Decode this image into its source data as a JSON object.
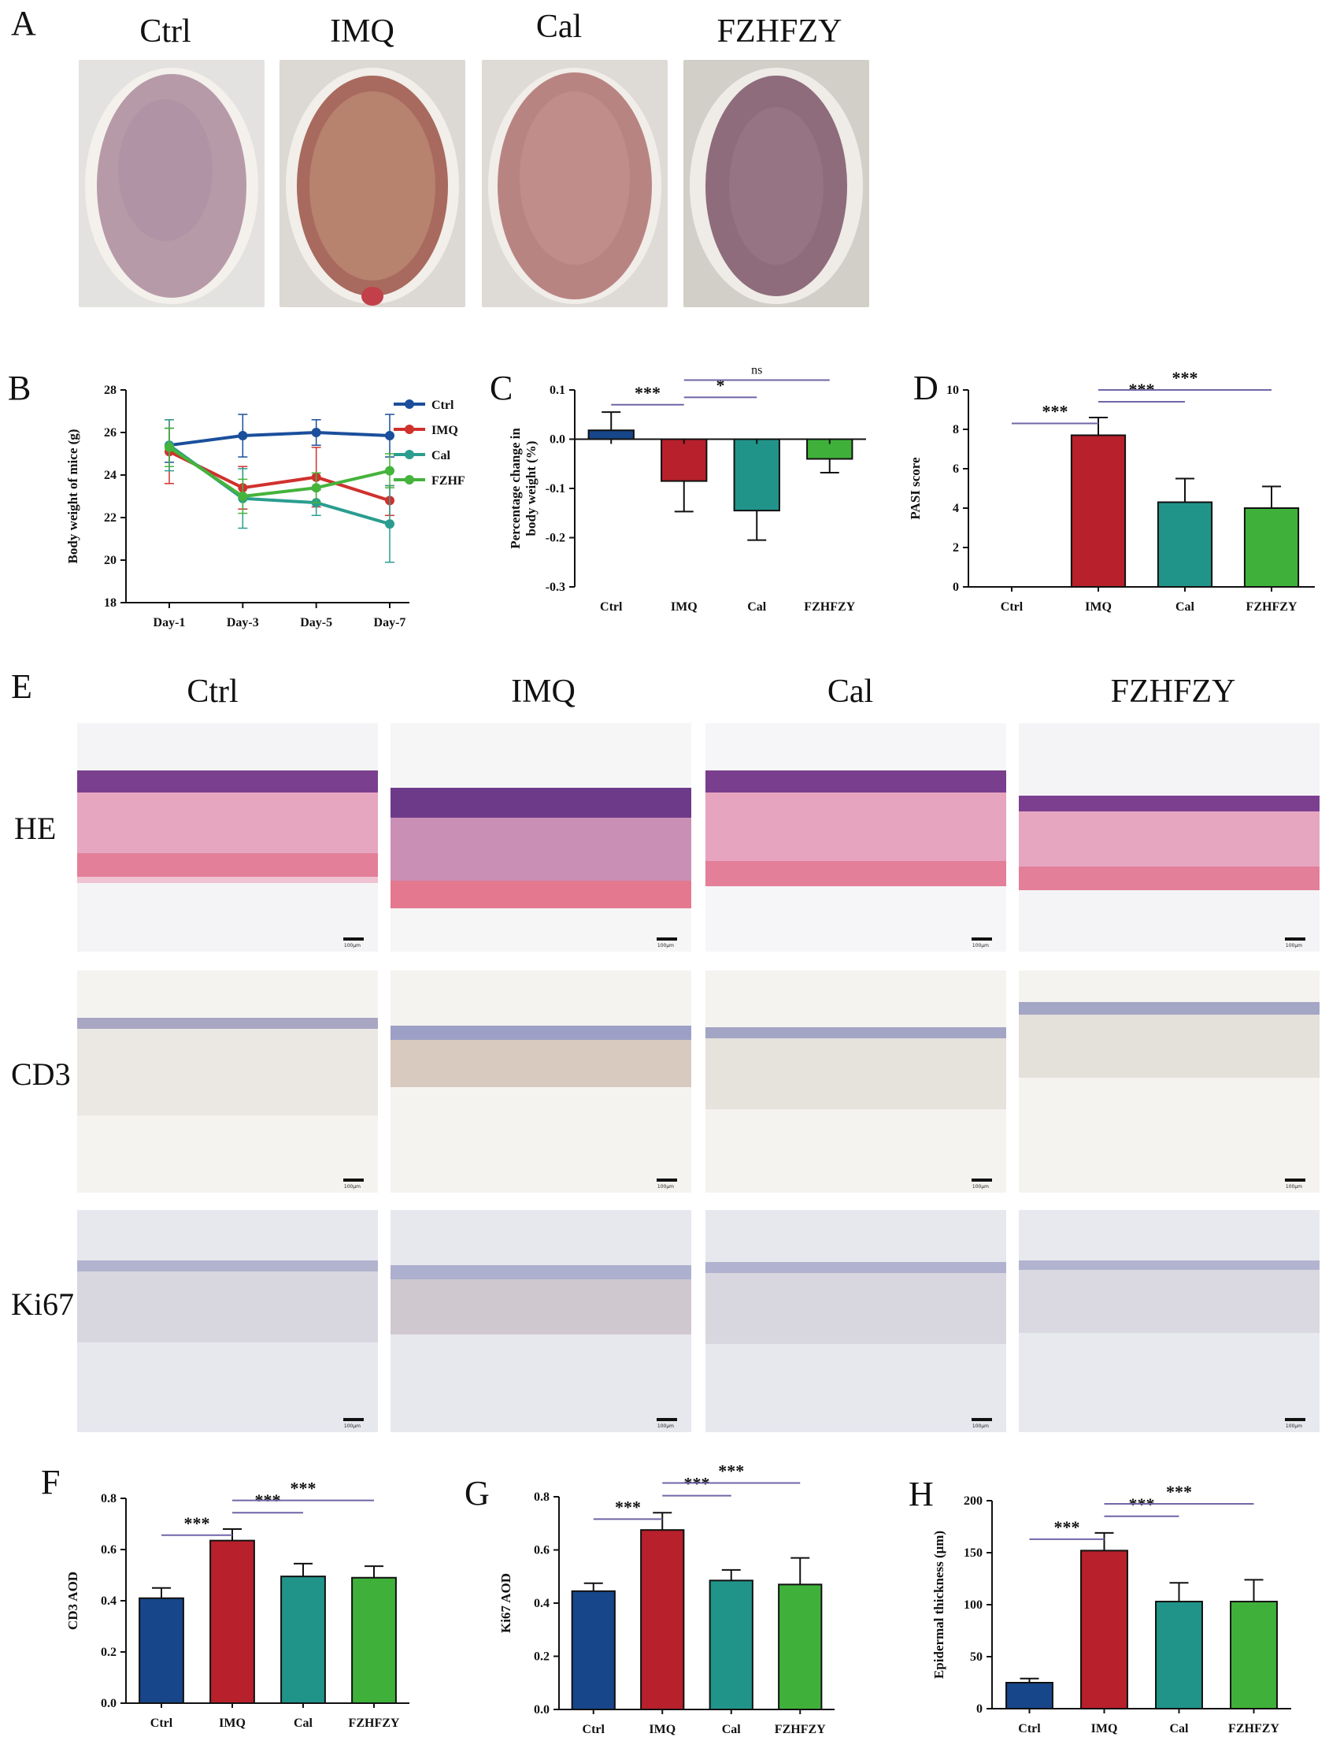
{
  "panels": {
    "A": {
      "letter": "A",
      "groups": [
        "Ctrl",
        "IMQ",
        "Cal",
        "FZHFZY"
      ]
    },
    "E": {
      "letter": "E",
      "groups": [
        "Ctrl",
        "IMQ",
        "Cal",
        "FZHFZY"
      ],
      "rows": [
        "HE",
        "CD3",
        "Ki67"
      ],
      "scale_text": "100μm"
    }
  },
  "chart_data": [
    {
      "panel": "B",
      "type": "line",
      "ylabel": "Body weight of mice (g)",
      "xlabel": "",
      "x": [
        "Day-1",
        "Day-3",
        "Day-5",
        "Day-7"
      ],
      "ylim": [
        18,
        28
      ],
      "yticks": [
        18,
        20,
        22,
        24,
        26,
        28
      ],
      "legend_position": "top-right",
      "series": [
        {
          "name": "Ctrl",
          "color": "#1b4f9c",
          "values": [
            25.4,
            25.85,
            26.0,
            25.85
          ],
          "err": [
            0.8,
            1.0,
            0.6,
            1.0
          ]
        },
        {
          "name": "IMQ",
          "color": "#d0312d",
          "values": [
            25.1,
            23.4,
            23.9,
            22.8
          ],
          "err": [
            1.5,
            1.0,
            1.4,
            0.7
          ]
        },
        {
          "name": "Cal",
          "color": "#2a9d8f",
          "values": [
            25.4,
            22.9,
            22.7,
            21.7
          ],
          "err": [
            1.2,
            1.4,
            0.6,
            1.8
          ]
        },
        {
          "name": "FZHFZY",
          "color": "#45b33c",
          "values": [
            25.3,
            23.0,
            23.4,
            24.2
          ],
          "err": [
            0.9,
            0.8,
            0.7,
            0.8
          ]
        }
      ]
    },
    {
      "panel": "C",
      "type": "bar",
      "ylabel": "Percentage change in body weight (%)",
      "categories": [
        "Ctrl",
        "IMQ",
        "Cal",
        "FZHFZY"
      ],
      "values": [
        0.018,
        -0.085,
        -0.145,
        -0.04
      ],
      "err": [
        0.037,
        0.062,
        0.06,
        0.028
      ],
      "ylim": [
        -0.3,
        0.1
      ],
      "yticks": [
        0.1,
        0.0,
        -0.1,
        -0.2,
        -0.3
      ],
      "significance": [
        {
          "from": 0,
          "to": 1,
          "label": "***"
        },
        {
          "from": 1,
          "to": 2,
          "label": "*"
        },
        {
          "from": 1,
          "to": 3,
          "label": "ns"
        }
      ]
    },
    {
      "panel": "D",
      "type": "bar",
      "ylabel": "PASI score",
      "categories": [
        "Ctrl",
        "IMQ",
        "Cal",
        "FZHFZY"
      ],
      "values": [
        0,
        7.7,
        4.3,
        4.0
      ],
      "err": [
        0,
        0.9,
        1.2,
        1.1
      ],
      "ylim": [
        0,
        10
      ],
      "yticks": [
        0,
        2,
        4,
        6,
        8,
        10
      ],
      "significance": [
        {
          "from": 0,
          "to": 1,
          "label": "***"
        },
        {
          "from": 1,
          "to": 2,
          "label": "***"
        },
        {
          "from": 1,
          "to": 3,
          "label": "***"
        }
      ]
    },
    {
      "panel": "F",
      "type": "bar",
      "ylabel": "CD3 AOD",
      "categories": [
        "Ctrl",
        "IMQ",
        "Cal",
        "FZHFZY"
      ],
      "values": [
        0.41,
        0.635,
        0.495,
        0.49
      ],
      "err": [
        0.04,
        0.045,
        0.05,
        0.045
      ],
      "ylim": [
        0,
        0.8
      ],
      "yticks": [
        0.0,
        0.2,
        0.4,
        0.6,
        0.8
      ],
      "significance": [
        {
          "from": 0,
          "to": 1,
          "label": "***"
        },
        {
          "from": 1,
          "to": 2,
          "label": "***"
        },
        {
          "from": 1,
          "to": 3,
          "label": "***"
        }
      ]
    },
    {
      "panel": "G",
      "type": "bar",
      "ylabel": "Ki67 AOD",
      "categories": [
        "Ctrl",
        "IMQ",
        "Cal",
        "FZHFZY"
      ],
      "values": [
        0.445,
        0.675,
        0.485,
        0.47
      ],
      "err": [
        0.03,
        0.065,
        0.04,
        0.1
      ],
      "ylim": [
        0,
        0.8
      ],
      "yticks": [
        0.0,
        0.2,
        0.4,
        0.6,
        0.8
      ],
      "significance": [
        {
          "from": 0,
          "to": 1,
          "label": "***"
        },
        {
          "from": 1,
          "to": 2,
          "label": "***"
        },
        {
          "from": 1,
          "to": 3,
          "label": "***"
        }
      ]
    },
    {
      "panel": "H",
      "type": "bar",
      "ylabel": "Epidermal thickness (μm)",
      "categories": [
        "Ctrl",
        "IMQ",
        "Cal",
        "FZHFZY"
      ],
      "values": [
        25,
        152,
        103,
        103
      ],
      "err": [
        4,
        17,
        18,
        21
      ],
      "ylim": [
        0,
        200
      ],
      "yticks": [
        0,
        50,
        100,
        150,
        200
      ],
      "significance": [
        {
          "from": 0,
          "to": 1,
          "label": "***"
        },
        {
          "from": 1,
          "to": 2,
          "label": "***"
        },
        {
          "from": 1,
          "to": 3,
          "label": "***"
        }
      ]
    }
  ],
  "colors": {
    "ctrl": "#17468a",
    "imq": "#b8202b",
    "cal": "#21948a",
    "fzhfzy": "#3fb13a"
  }
}
